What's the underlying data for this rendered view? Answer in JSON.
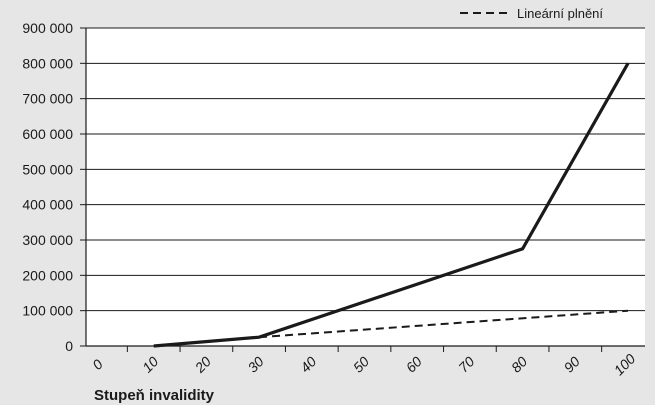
{
  "chart_data": {
    "type": "line",
    "title": "",
    "xlabel": "Stupeň invalidity",
    "ylabel": "",
    "x_ticks": [
      "0",
      "10",
      "20",
      "30",
      "40",
      "50",
      "60",
      "70",
      "80",
      "90",
      "100"
    ],
    "y_ticks": [
      "0",
      "100 000",
      "200 000",
      "300 000",
      "400 000",
      "500 000",
      "600 000",
      "700 000",
      "800 000",
      "900 000"
    ],
    "xlim": [
      0,
      100
    ],
    "ylim": [
      0,
      900000
    ],
    "grid": "horizontal",
    "legend_position": "top-right",
    "series": [
      {
        "name": "",
        "style": "solid",
        "color": "#1a1a1a",
        "points": [
          [
            10,
            0
          ],
          [
            30,
            25000
          ],
          [
            80,
            275000
          ],
          [
            100,
            800000
          ]
        ]
      },
      {
        "name": "Lineární plnění",
        "style": "dashed",
        "color": "#1a1a1a",
        "points": [
          [
            30,
            25000
          ],
          [
            100,
            100000
          ]
        ]
      }
    ]
  }
}
